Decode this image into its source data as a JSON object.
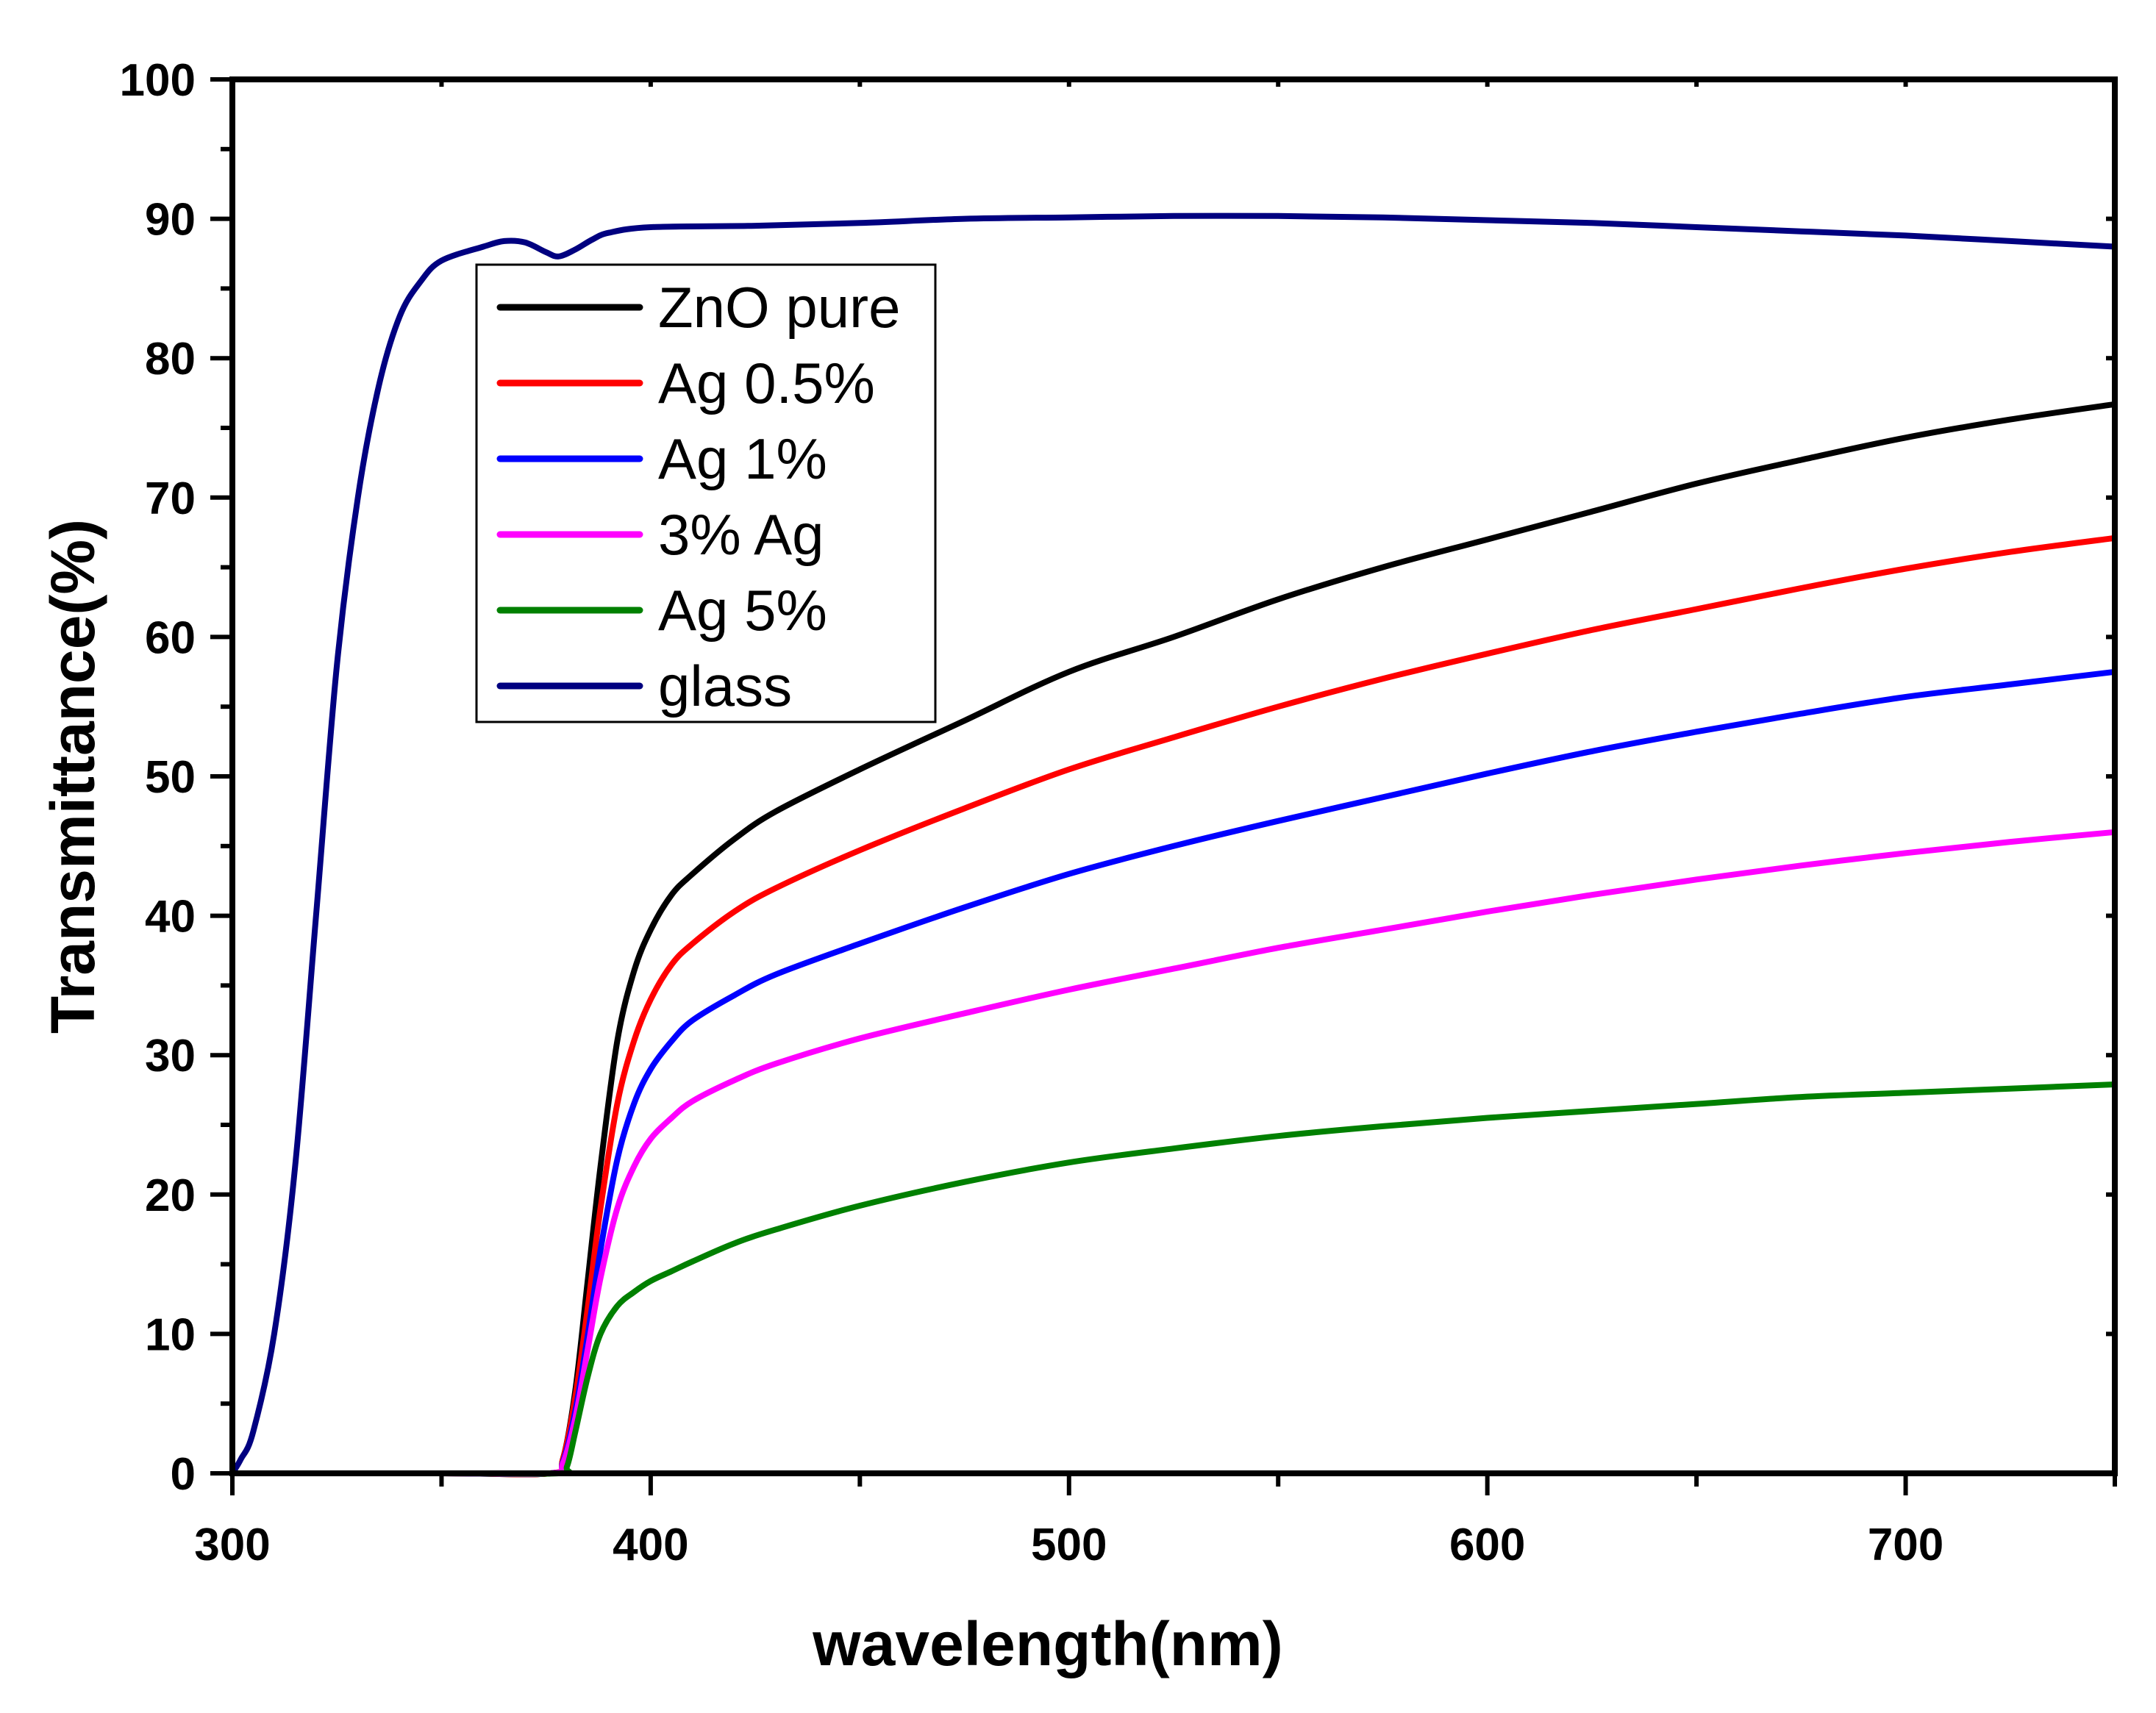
{
  "chart_data": {
    "type": "line",
    "title": "",
    "xlabel": "wavelength(nm)",
    "ylabel": "Transmittance(%)",
    "xlim": [
      300,
      750
    ],
    "ylim": [
      0,
      100
    ],
    "x_ticks": [
      300,
      400,
      500,
      600,
      700
    ],
    "y_ticks": [
      0,
      10,
      20,
      30,
      40,
      50,
      60,
      70,
      80,
      90,
      100
    ],
    "grid": false,
    "legend_position": "top-left",
    "series": [
      {
        "name": "ZnO pure",
        "color": "#000000",
        "points": [
          [
            300,
            0
          ],
          [
            350,
            0
          ],
          [
            376,
            0
          ],
          [
            379,
            1
          ],
          [
            382,
            6
          ],
          [
            385,
            14
          ],
          [
            388,
            22
          ],
          [
            392,
            31
          ],
          [
            396,
            36
          ],
          [
            400,
            39
          ],
          [
            405,
            41.5
          ],
          [
            410,
            43
          ],
          [
            420,
            45.5
          ],
          [
            430,
            47.5
          ],
          [
            450,
            50.5
          ],
          [
            475,
            54
          ],
          [
            500,
            57.5
          ],
          [
            525,
            60
          ],
          [
            550,
            62.7
          ],
          [
            575,
            65
          ],
          [
            600,
            67
          ],
          [
            625,
            69
          ],
          [
            650,
            71
          ],
          [
            675,
            72.7
          ],
          [
            700,
            74.3
          ],
          [
            725,
            75.6
          ],
          [
            750,
            76.7
          ]
        ]
      },
      {
        "name": "Ag 0.5%",
        "color": "#ff0000",
        "points": [
          [
            300,
            0
          ],
          [
            350,
            0
          ],
          [
            376,
            0
          ],
          [
            379,
            1
          ],
          [
            382,
            5.5
          ],
          [
            385,
            12
          ],
          [
            388,
            19
          ],
          [
            392,
            26.5
          ],
          [
            396,
            31
          ],
          [
            400,
            34
          ],
          [
            405,
            36.5
          ],
          [
            410,
            38
          ],
          [
            420,
            40.3
          ],
          [
            430,
            42
          ],
          [
            450,
            44.7
          ],
          [
            475,
            47.7
          ],
          [
            500,
            50.5
          ],
          [
            525,
            52.8
          ],
          [
            550,
            55
          ],
          [
            575,
            57
          ],
          [
            600,
            58.8
          ],
          [
            625,
            60.5
          ],
          [
            650,
            62
          ],
          [
            675,
            63.5
          ],
          [
            700,
            64.9
          ],
          [
            725,
            66.1
          ],
          [
            750,
            67.1
          ]
        ]
      },
      {
        "name": "Ag 1%",
        "color": "#0000ff",
        "points": [
          [
            300,
            0
          ],
          [
            350,
            0
          ],
          [
            376,
            0
          ],
          [
            379,
            0.8
          ],
          [
            382,
            4.5
          ],
          [
            385,
            10
          ],
          [
            388,
            16
          ],
          [
            392,
            22.5
          ],
          [
            396,
            26.5
          ],
          [
            400,
            29
          ],
          [
            405,
            31
          ],
          [
            410,
            32.5
          ],
          [
            420,
            34.3
          ],
          [
            430,
            35.8
          ],
          [
            450,
            38
          ],
          [
            475,
            40.6
          ],
          [
            500,
            43
          ],
          [
            525,
            45
          ],
          [
            550,
            46.8
          ],
          [
            575,
            48.5
          ],
          [
            600,
            50.2
          ],
          [
            625,
            51.8
          ],
          [
            650,
            53.2
          ],
          [
            675,
            54.5
          ],
          [
            700,
            55.7
          ],
          [
            725,
            56.6
          ],
          [
            750,
            57.5
          ]
        ]
      },
      {
        "name": "3% Ag",
        "color": "#ff00ff",
        "points": [
          [
            300,
            0
          ],
          [
            350,
            0
          ],
          [
            376,
            0
          ],
          [
            379,
            0.7
          ],
          [
            382,
            4
          ],
          [
            385,
            9
          ],
          [
            388,
            14
          ],
          [
            392,
            19
          ],
          [
            396,
            22
          ],
          [
            400,
            24
          ],
          [
            405,
            25.5
          ],
          [
            410,
            26.7
          ],
          [
            420,
            28.2
          ],
          [
            430,
            29.4
          ],
          [
            450,
            31.2
          ],
          [
            475,
            33
          ],
          [
            500,
            34.7
          ],
          [
            525,
            36.2
          ],
          [
            550,
            37.7
          ],
          [
            575,
            39
          ],
          [
            600,
            40.3
          ],
          [
            625,
            41.5
          ],
          [
            650,
            42.6
          ],
          [
            675,
            43.6
          ],
          [
            700,
            44.5
          ],
          [
            725,
            45.3
          ],
          [
            750,
            46
          ]
        ]
      },
      {
        "name": "Ag 5%",
        "color": "#008000",
        "points": [
          [
            300,
            0
          ],
          [
            350,
            0
          ],
          [
            378,
            0
          ],
          [
            380,
            0.5
          ],
          [
            382,
            3
          ],
          [
            385,
            7
          ],
          [
            388,
            10
          ],
          [
            392,
            12
          ],
          [
            396,
            13
          ],
          [
            400,
            13.8
          ],
          [
            405,
            14.5
          ],
          [
            410,
            15.2
          ],
          [
            420,
            16.5
          ],
          [
            430,
            17.5
          ],
          [
            450,
            19.2
          ],
          [
            475,
            20.9
          ],
          [
            500,
            22.3
          ],
          [
            525,
            23.3
          ],
          [
            550,
            24.2
          ],
          [
            575,
            24.9
          ],
          [
            600,
            25.5
          ],
          [
            625,
            26
          ],
          [
            650,
            26.5
          ],
          [
            675,
            27
          ],
          [
            700,
            27.3
          ],
          [
            725,
            27.6
          ],
          [
            750,
            27.9
          ]
        ]
      },
      {
        "name": "glass",
        "color": "#000080",
        "points": [
          [
            300,
            0
          ],
          [
            302,
            1
          ],
          [
            305,
            3
          ],
          [
            310,
            10
          ],
          [
            315,
            22
          ],
          [
            320,
            40
          ],
          [
            325,
            58
          ],
          [
            330,
            70
          ],
          [
            335,
            78
          ],
          [
            340,
            83
          ],
          [
            345,
            85.5
          ],
          [
            350,
            87
          ],
          [
            360,
            88
          ],
          [
            365,
            88.4
          ],
          [
            370,
            88.3
          ],
          [
            375,
            87.6
          ],
          [
            378,
            87.3
          ],
          [
            382,
            87.8
          ],
          [
            386,
            88.5
          ],
          [
            390,
            89
          ],
          [
            400,
            89.4
          ],
          [
            425,
            89.5
          ],
          [
            450,
            89.7
          ],
          [
            475,
            90
          ],
          [
            500,
            90.1
          ],
          [
            525,
            90.2
          ],
          [
            550,
            90.2
          ],
          [
            575,
            90.1
          ],
          [
            600,
            89.9
          ],
          [
            625,
            89.7
          ],
          [
            650,
            89.4
          ],
          [
            675,
            89.1
          ],
          [
            700,
            88.8
          ],
          [
            725,
            88.4
          ],
          [
            750,
            88
          ]
        ]
      }
    ]
  }
}
